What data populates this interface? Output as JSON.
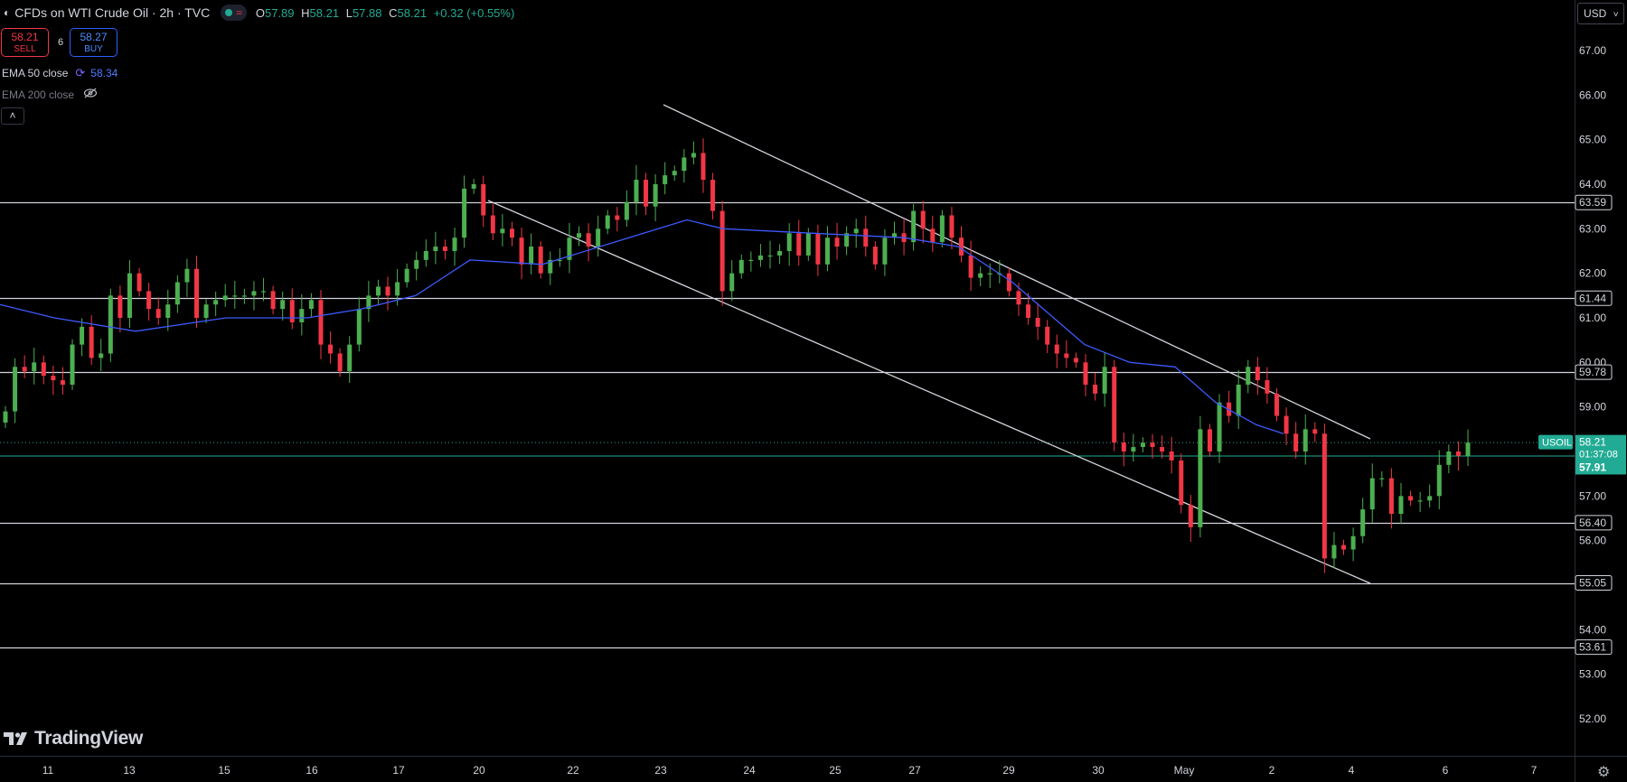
{
  "header": {
    "title": "CFDs on WTI Crude Oil · 2h · TVC",
    "ohlc": {
      "open": "57.89",
      "high": "58.21",
      "low": "57.88",
      "close": "58.21",
      "change": "+0.32 (+0.55%)"
    },
    "labels": {
      "o": "O",
      "h": "H",
      "l": "L",
      "c": "C"
    }
  },
  "trade": {
    "sell_price": "58.21",
    "sell_label": "SELL",
    "spread": "6",
    "buy_price": "58.27",
    "buy_label": "BUY"
  },
  "indicators": [
    {
      "name": "EMA 50 close",
      "value": "58.34",
      "visible": true
    },
    {
      "name": "EMA 200 close",
      "visible": false
    }
  ],
  "currency": "USD",
  "brand": "TradingView",
  "chart_data": {
    "type": "candlestick",
    "symbol": "USOIL",
    "title": "CFDs on WTI Crude Oil · 2h · TVC",
    "ylim": [
      51.3,
      68.0
    ],
    "y_ticks": [
      "52.00",
      "53.00",
      "54.00",
      "55.00",
      "56.00",
      "57.00",
      "58.00",
      "59.00",
      "60.00",
      "61.00",
      "62.00",
      "63.00",
      "64.00",
      "65.00",
      "66.00",
      "67.00"
    ],
    "x_labels": [
      "11",
      "13",
      "15",
      "16",
      "17",
      "20",
      "22",
      "23",
      "24",
      "25",
      "27",
      "29",
      "30",
      "May",
      "2",
      "4",
      "6",
      "7"
    ],
    "horizontal_levels": [
      "63.59",
      "61.44",
      "59.78",
      "56.40",
      "55.05",
      "53.61"
    ],
    "last_price": {
      "symbol": "USOIL",
      "price": "58.21",
      "countdown": "01:37:08"
    },
    "reference_price": "57.91",
    "closes": [
      58.9,
      59.9,
      59.8,
      60.0,
      59.7,
      59.6,
      59.5,
      60.4,
      60.8,
      60.1,
      60.2,
      61.5,
      61.0,
      62.0,
      61.6,
      61.2,
      61.0,
      61.3,
      61.8,
      62.1,
      61.0,
      61.3,
      61.4,
      61.5,
      61.5,
      61.5,
      61.6,
      61.6,
      61.2,
      61.4,
      60.9,
      61.2,
      61.4,
      60.4,
      60.2,
      59.8,
      60.4,
      61.2,
      61.5,
      61.7,
      61.5,
      61.8,
      62.1,
      62.3,
      62.5,
      62.6,
      62.5,
      62.8,
      63.9,
      64.0,
      63.3,
      62.9,
      63.0,
      62.8,
      62.2,
      62.6,
      62.0,
      62.3,
      62.3,
      62.8,
      62.9,
      62.6,
      63.0,
      63.3,
      63.2,
      63.6,
      64.1,
      63.5,
      64.0,
      64.2,
      64.3,
      64.6,
      64.7,
      64.1,
      63.4,
      61.6,
      62.0,
      62.3,
      62.3,
      62.4,
      62.4,
      62.5,
      62.9,
      62.4,
      62.9,
      62.2,
      62.8,
      62.6,
      62.9,
      63.0,
      62.6,
      62.2,
      62.8,
      62.9,
      62.7,
      63.4,
      63.0,
      62.7,
      63.3,
      62.8,
      62.4,
      61.9,
      62.0,
      62.0,
      62.0,
      61.6,
      61.3,
      61.0,
      60.8,
      60.4,
      60.2,
      60.1,
      60.0,
      59.5,
      59.3,
      59.9,
      58.2,
      58.0,
      58.1,
      58.2,
      58.1,
      58.0,
      57.8,
      56.8,
      56.3,
      58.5,
      58.0,
      59.1,
      58.8,
      59.5,
      59.9,
      59.6,
      59.3,
      58.8,
      58.4,
      58.0,
      58.5,
      58.4,
      55.6,
      55.9,
      55.8,
      56.1,
      56.7,
      57.4,
      57.4,
      56.6,
      57.0,
      56.9,
      56.9,
      57.0,
      57.7,
      58.0,
      57.9,
      58.2
    ],
    "ema50": [
      [
        0,
        61.3
      ],
      [
        60,
        61.0
      ],
      [
        150,
        60.7
      ],
      [
        250,
        61.0
      ],
      [
        340,
        61.0
      ],
      [
        400,
        61.2
      ],
      [
        460,
        61.5
      ],
      [
        520,
        62.3
      ],
      [
        600,
        62.2
      ],
      [
        680,
        62.7
      ],
      [
        760,
        63.2
      ],
      [
        800,
        63.0
      ],
      [
        900,
        62.9
      ],
      [
        1000,
        62.8
      ],
      [
        1060,
        62.6
      ],
      [
        1120,
        61.8
      ],
      [
        1200,
        60.4
      ],
      [
        1250,
        60.0
      ],
      [
        1300,
        59.9
      ],
      [
        1345,
        59.1
      ],
      [
        1390,
        58.6
      ],
      [
        1420,
        58.4
      ]
    ],
    "trendlines": [
      {
        "from": [
          734,
          116
        ],
        "to": [
          1516,
          486
        ]
      },
      {
        "from": [
          540,
          222
        ],
        "to": [
          1516,
          646
        ]
      }
    ]
  }
}
